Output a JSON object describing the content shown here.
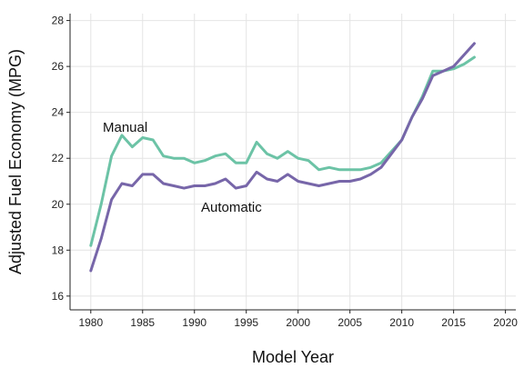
{
  "chart_data": {
    "type": "line",
    "title": "",
    "xlabel": "Model Year",
    "ylabel": "Adjusted Fuel Economy (MPG)",
    "xlim": [
      1978,
      2021
    ],
    "ylim": [
      15.4,
      28.3
    ],
    "xticks": [
      1980,
      1985,
      1990,
      1995,
      2000,
      2005,
      2010,
      2015,
      2020
    ],
    "yticks": [
      16,
      18,
      20,
      22,
      24,
      26,
      28
    ],
    "grid": true,
    "legend": "none (series labelled directly on chart)",
    "x": [
      1980,
      1981,
      1982,
      1983,
      1984,
      1985,
      1986,
      1987,
      1988,
      1989,
      1990,
      1991,
      1992,
      1993,
      1994,
      1995,
      1996,
      1997,
      1998,
      1999,
      2000,
      2001,
      2002,
      2003,
      2004,
      2005,
      2006,
      2007,
      2008,
      2009,
      2010,
      2011,
      2012,
      2013,
      2014,
      2015,
      2016,
      2017
    ],
    "series": [
      {
        "name": "Manual",
        "color": "#6cc3a6",
        "values": [
          18.2,
          20.0,
          22.1,
          23.0,
          22.5,
          22.9,
          22.8,
          22.1,
          22.0,
          22.0,
          21.8,
          21.9,
          22.1,
          22.2,
          21.8,
          21.8,
          22.7,
          22.2,
          22.0,
          22.3,
          22.0,
          21.9,
          21.5,
          21.6,
          21.5,
          21.5,
          21.5,
          21.6,
          21.8,
          22.3,
          22.8,
          23.8,
          24.7,
          25.8,
          25.8,
          25.9,
          26.1,
          26.4
        ]
      },
      {
        "name": "Automatic",
        "color": "#7766a9",
        "values": [
          17.1,
          18.5,
          20.2,
          20.9,
          20.8,
          21.3,
          21.3,
          20.9,
          20.8,
          20.7,
          20.8,
          20.8,
          20.9,
          21.1,
          20.7,
          20.8,
          21.4,
          21.1,
          21.0,
          21.3,
          21.0,
          20.9,
          20.8,
          20.9,
          21.0,
          21.0,
          21.1,
          21.3,
          21.6,
          22.2,
          22.8,
          23.8,
          24.6,
          25.6,
          25.8,
          26.0,
          26.5,
          27.0
        ]
      }
    ]
  }
}
